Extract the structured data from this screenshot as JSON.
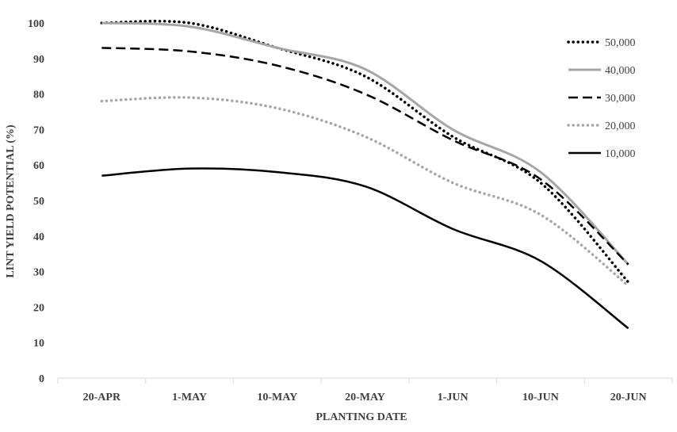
{
  "chart_data": {
    "type": "line",
    "xlabel": "PLANTING DATE",
    "ylabel": "LINT YIELD POTENTIAL (%)",
    "categories": [
      "20-APR",
      "1-MAY",
      "10-MAY",
      "20-MAY",
      "1-JUN",
      "10-JUN",
      "20-JUN"
    ],
    "ylim": [
      0,
      100
    ],
    "yticks": [
      0,
      10,
      20,
      30,
      40,
      50,
      60,
      70,
      80,
      90,
      100
    ],
    "grid": false,
    "legend_position": "top-right",
    "series": [
      {
        "name": "50,000",
        "style": "dotted",
        "color": "#000000",
        "values": [
          100,
          100,
          93,
          85,
          68,
          55,
          27
        ]
      },
      {
        "name": "40,000",
        "style": "solid",
        "color": "#a6a6a6",
        "values": [
          100,
          99,
          93,
          87,
          70,
          58,
          32
        ]
      },
      {
        "name": "30,000",
        "style": "dashed",
        "color": "#000000",
        "values": [
          93,
          92,
          88,
          80,
          67,
          56,
          32
        ]
      },
      {
        "name": "20,000",
        "style": "dotted",
        "color": "#a6a6a6",
        "values": [
          78,
          79,
          76,
          68,
          55,
          46,
          26
        ]
      },
      {
        "name": "10,000",
        "style": "solid",
        "color": "#000000",
        "values": [
          57,
          59,
          58,
          54,
          42,
          33,
          14
        ]
      }
    ]
  }
}
